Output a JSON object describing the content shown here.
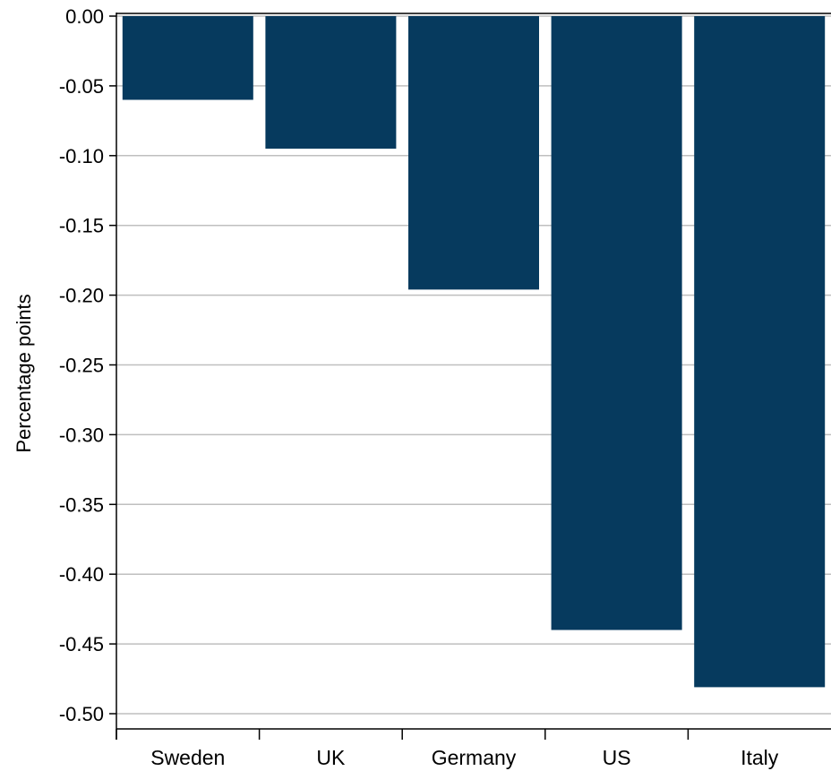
{
  "chart_data": {
    "type": "bar",
    "ylabel": "Percentage points",
    "categories": [
      "Sweden",
      "UK",
      "Germany",
      "US",
      "Italy"
    ],
    "values": [
      -0.06,
      -0.095,
      -0.196,
      -0.44,
      -0.481
    ],
    "ylim": [
      -0.5,
      0.0
    ],
    "yticks": [
      "0.00",
      "-0.05",
      "-0.10",
      "-0.15",
      "-0.20",
      "-0.25",
      "-0.30",
      "-0.35",
      "-0.40",
      "-0.45",
      "-0.50"
    ],
    "grid": true,
    "bar_color": "#063a5e",
    "grid_color": "#bfbfbf"
  }
}
